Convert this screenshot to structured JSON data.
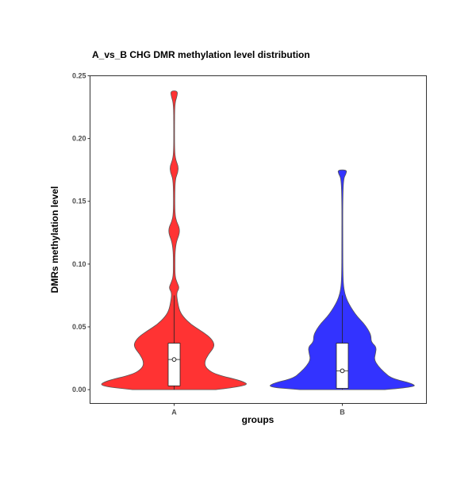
{
  "chart_data": {
    "type": "violin",
    "title": "A_vs_B  CHG  DMR methylation level  distribution",
    "xlabel": "groups",
    "ylabel": "DMRs  methylation  level",
    "ylim": [
      -0.011,
      0.25
    ],
    "yticks": [
      0.0,
      0.05,
      0.1,
      0.15,
      0.2,
      0.25
    ],
    "ytick_labels": [
      "0.00",
      "0.05",
      "0.10",
      "0.15",
      "0.20",
      "0.25"
    ],
    "categories": [
      "A",
      "B"
    ],
    "grid": false,
    "legend": "none",
    "series": [
      {
        "category": "A",
        "color": "#ff3333",
        "min": 0.0,
        "max": 0.238,
        "q1": 0.003,
        "median": 0.024,
        "q3": 0.037,
        "whisker_high": 0.075,
        "density": [
          [
            0.0,
            0.55
          ],
          [
            0.003,
            1.0
          ],
          [
            0.007,
            0.9
          ],
          [
            0.012,
            0.55
          ],
          [
            0.017,
            0.42
          ],
          [
            0.022,
            0.4
          ],
          [
            0.028,
            0.45
          ],
          [
            0.033,
            0.52
          ],
          [
            0.037,
            0.53
          ],
          [
            0.042,
            0.47
          ],
          [
            0.047,
            0.35
          ],
          [
            0.052,
            0.22
          ],
          [
            0.058,
            0.12
          ],
          [
            0.063,
            0.07
          ],
          [
            0.07,
            0.045
          ],
          [
            0.077,
            0.03
          ],
          [
            0.081,
            0.07
          ],
          [
            0.085,
            0.04
          ],
          [
            0.09,
            0.012
          ],
          [
            0.1,
            0.01
          ],
          [
            0.11,
            0.012
          ],
          [
            0.118,
            0.03
          ],
          [
            0.124,
            0.07
          ],
          [
            0.129,
            0.07
          ],
          [
            0.134,
            0.03
          ],
          [
            0.14,
            0.01
          ],
          [
            0.155,
            0.008
          ],
          [
            0.168,
            0.015
          ],
          [
            0.173,
            0.05
          ],
          [
            0.178,
            0.055
          ],
          [
            0.183,
            0.02
          ],
          [
            0.19,
            0.006
          ],
          [
            0.21,
            0.005
          ],
          [
            0.228,
            0.008
          ],
          [
            0.234,
            0.04
          ],
          [
            0.238,
            0.045
          ]
        ]
      },
      {
        "category": "B",
        "color": "#3333ff",
        "min": 0.0,
        "max": 0.175,
        "q1": 0.001,
        "median": 0.015,
        "q3": 0.037,
        "whisker_high": 0.075,
        "density": [
          [
            0.0,
            0.56
          ],
          [
            0.002,
            0.98
          ],
          [
            0.005,
            0.92
          ],
          [
            0.009,
            0.65
          ],
          [
            0.014,
            0.55
          ],
          [
            0.019,
            0.47
          ],
          [
            0.024,
            0.42
          ],
          [
            0.029,
            0.44
          ],
          [
            0.034,
            0.45
          ],
          [
            0.038,
            0.38
          ],
          [
            0.043,
            0.38
          ],
          [
            0.048,
            0.34
          ],
          [
            0.053,
            0.28
          ],
          [
            0.058,
            0.2
          ],
          [
            0.063,
            0.14
          ],
          [
            0.068,
            0.09
          ],
          [
            0.073,
            0.05
          ],
          [
            0.08,
            0.02
          ],
          [
            0.09,
            0.008
          ],
          [
            0.12,
            0.006
          ],
          [
            0.15,
            0.006
          ],
          [
            0.168,
            0.015
          ],
          [
            0.172,
            0.05
          ],
          [
            0.175,
            0.06
          ]
        ]
      }
    ]
  }
}
